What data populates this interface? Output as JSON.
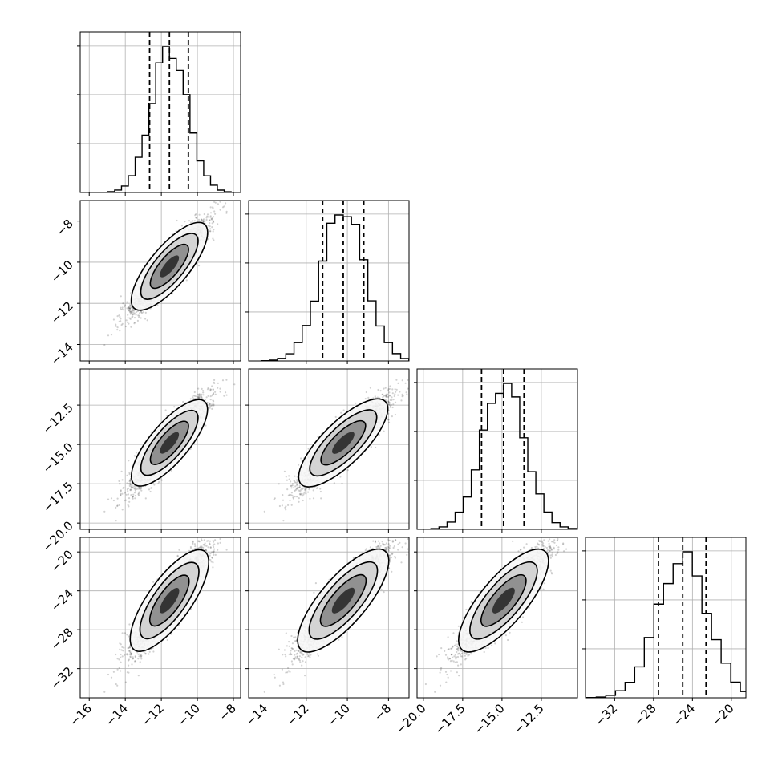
{
  "chart_data": {
    "type": "corner",
    "parameters": [
      {
        "tick_values": [
          -16,
          -14,
          -12,
          -10,
          -8
        ],
        "tick_labels": [
          "−16",
          "−14",
          "−12",
          "−10",
          "−8"
        ],
        "lim": [
          -16.5,
          -7.6
        ],
        "mean": -11.55,
        "sd": 1.0,
        "quantiles": [
          -12.65,
          -11.55,
          -10.5
        ]
      },
      {
        "tick_values": [
          -14,
          -12,
          -10,
          -8
        ],
        "tick_labels": [
          "−14",
          "−12",
          "−10",
          "−8"
        ],
        "lim": [
          -14.8,
          -7.0
        ],
        "mean": -10.2,
        "sd": 1.05,
        "quantiles": [
          -11.2,
          -10.2,
          -9.2
        ]
      },
      {
        "tick_values": [
          -20.0,
          -17.5,
          -15.0,
          -12.5
        ],
        "tick_labels": [
          "−20.0",
          "−17.5",
          "−15.0",
          "−12.5"
        ],
        "lim": [
          -20.4,
          -10.2
        ],
        "mean": -14.9,
        "sd": 1.35,
        "quantiles": [
          -16.3,
          -14.9,
          -13.6
        ]
      },
      {
        "tick_values": [
          -32,
          -28,
          -24,
          -20
        ],
        "tick_labels": [
          "−32",
          "−28",
          "−24",
          "−20"
        ],
        "lim": [
          -35.0,
          -18.5
        ],
        "mean": -25.0,
        "sd": 2.6,
        "quantiles": [
          -27.5,
          -25.0,
          -22.6
        ]
      }
    ],
    "hist_yticks": 3,
    "grid": true,
    "correlation": 0.9
  }
}
